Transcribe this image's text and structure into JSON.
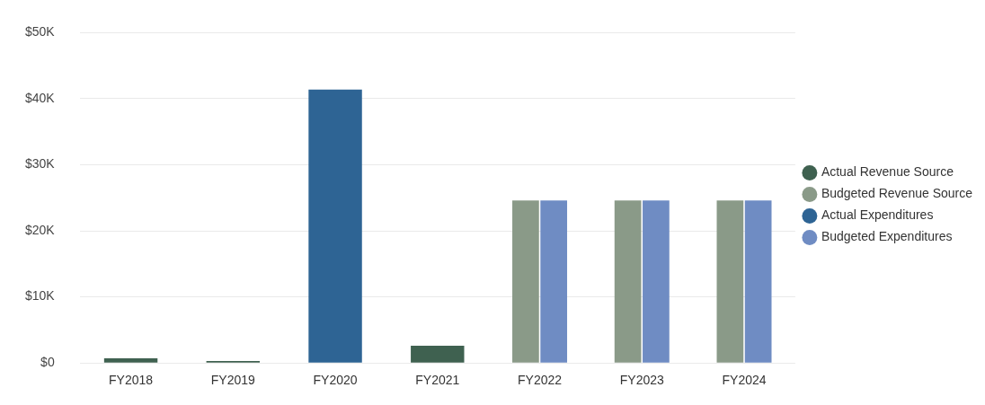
{
  "chart_data": {
    "type": "bar",
    "categories": [
      "FY2018",
      "FY2019",
      "FY2020",
      "FY2021",
      "FY2022",
      "FY2023",
      "FY2024"
    ],
    "series": [
      {
        "name": "Actual Revenue Source",
        "color": "#3f6150",
        "values": [
          700,
          300,
          null,
          2600,
          null,
          null,
          null
        ]
      },
      {
        "name": "Budgeted Revenue Source",
        "color": "#8a9a88",
        "values": [
          null,
          null,
          null,
          null,
          24600,
          24600,
          24600
        ]
      },
      {
        "name": "Actual Expenditures",
        "color": "#2e6494",
        "values": [
          null,
          null,
          41400,
          null,
          null,
          null,
          null
        ]
      },
      {
        "name": "Budgeted Expenditures",
        "color": "#6f8cc3",
        "values": [
          null,
          null,
          null,
          null,
          24600,
          24600,
          24600
        ]
      }
    ],
    "ylim": [
      0,
      50000
    ],
    "yticks": [
      {
        "value": 0,
        "label": "$0"
      },
      {
        "value": 10000,
        "label": "$10K"
      },
      {
        "value": 20000,
        "label": "$20K"
      },
      {
        "value": 30000,
        "label": "$30K"
      },
      {
        "value": 40000,
        "label": "$40K"
      },
      {
        "value": 50000,
        "label": "$50K"
      }
    ],
    "grid": "y",
    "legend": "right"
  }
}
